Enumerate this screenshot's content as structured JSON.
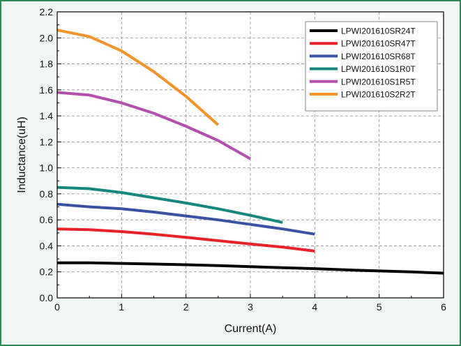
{
  "chart_data": {
    "type": "line",
    "title": "",
    "xlabel": "Current(A)",
    "ylabel": "Inductance(uH)",
    "xlim": [
      0,
      6
    ],
    "ylim": [
      0,
      2.2
    ],
    "x_ticks": [
      "0",
      "1",
      "2",
      "3",
      "4",
      "5",
      "6"
    ],
    "y_ticks": [
      "0.0",
      "0.2",
      "0.4",
      "0.6",
      "0.8",
      "1.0",
      "1.2",
      "1.4",
      "1.6",
      "1.8",
      "2.0",
      "2.2"
    ],
    "grid": "dashed",
    "legend_position": "top-right",
    "series": [
      {
        "name": "LPWI201610SR24T",
        "color": "#000000",
        "x": [
          0,
          0.5,
          1,
          1.5,
          2,
          2.5,
          3,
          3.5,
          4,
          4.5,
          5,
          5.5,
          6
        ],
        "y": [
          0.27,
          0.27,
          0.265,
          0.26,
          0.255,
          0.248,
          0.24,
          0.232,
          0.225,
          0.215,
          0.207,
          0.2,
          0.19
        ]
      },
      {
        "name": "LPWI201610SR47T",
        "color": "#e8222a",
        "x": [
          0,
          0.5,
          1,
          1.5,
          2,
          2.5,
          3,
          3.5,
          4
        ],
        "y": [
          0.53,
          0.525,
          0.51,
          0.49,
          0.465,
          0.44,
          0.415,
          0.39,
          0.36
        ]
      },
      {
        "name": "LPWI201610SR68T",
        "color": "#3a52a6",
        "x": [
          0,
          0.5,
          1,
          1.5,
          2,
          2.5,
          3,
          3.5,
          4
        ],
        "y": [
          0.72,
          0.7,
          0.685,
          0.66,
          0.63,
          0.6,
          0.565,
          0.53,
          0.49
        ]
      },
      {
        "name": "LPWI201610S1R0T",
        "color": "#16877f",
        "x": [
          0,
          0.5,
          1,
          1.5,
          2,
          2.5,
          3,
          3.5
        ],
        "y": [
          0.85,
          0.84,
          0.81,
          0.77,
          0.73,
          0.685,
          0.635,
          0.58
        ]
      },
      {
        "name": "LPWI201610S1R5T",
        "color": "#b44fb0",
        "x": [
          0,
          0.5,
          1,
          1.5,
          2,
          2.5,
          3
        ],
        "y": [
          1.58,
          1.56,
          1.5,
          1.42,
          1.32,
          1.21,
          1.07
        ]
      },
      {
        "name": "LPWI201610S2R2T",
        "color": "#f5932a",
        "x": [
          0,
          0.5,
          1,
          1.5,
          2,
          2.5
        ],
        "y": [
          2.06,
          2.01,
          1.9,
          1.74,
          1.55,
          1.33
        ]
      }
    ]
  }
}
